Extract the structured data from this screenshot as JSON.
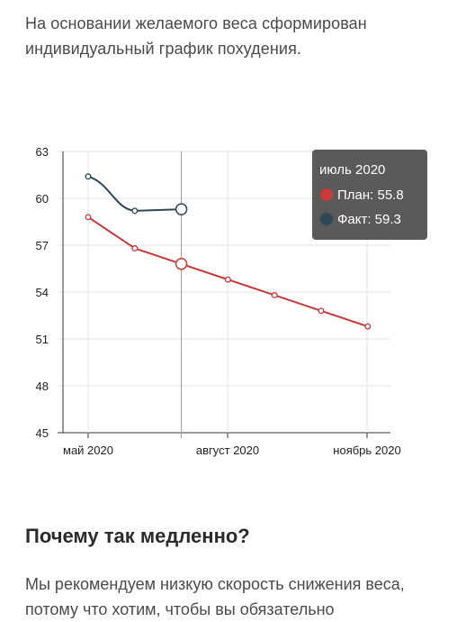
{
  "intro_text": "На основании желаемого веса сформирован индивидуальный график похудения.",
  "section_heading": "Почему так медленно?",
  "body_text": "Мы рекомендуем низкую скорость снижения веса, потому что хотим, чтобы вы обязательно",
  "tooltip": {
    "title": "июль 2020",
    "items": [
      {
        "label": "План: 55.8",
        "color": "#c8393a"
      },
      {
        "label": "Факт: 59.3",
        "color": "#2f4858"
      }
    ]
  },
  "chart_data": {
    "type": "line",
    "ylim": [
      45,
      63
    ],
    "yticks": [
      "63",
      "60",
      "57",
      "54",
      "51",
      "48",
      "45"
    ],
    "x": [
      "2020-05",
      "2020-06",
      "2020-07",
      "2020-08",
      "2020-09",
      "2020-10",
      "2020-11"
    ],
    "xtick_labels": [
      "май 2020",
      "август 2020",
      "ноябрь 2020"
    ],
    "highlight_x": "2020-07",
    "series": [
      {
        "name": "План",
        "color": "#c8393a",
        "values": [
          58.8,
          56.8,
          55.8,
          54.8,
          53.8,
          52.8,
          51.8
        ]
      },
      {
        "name": "Факт",
        "color": "#2f4858",
        "values": [
          61.4,
          59.2,
          59.3,
          null,
          null,
          null,
          null
        ]
      }
    ]
  }
}
